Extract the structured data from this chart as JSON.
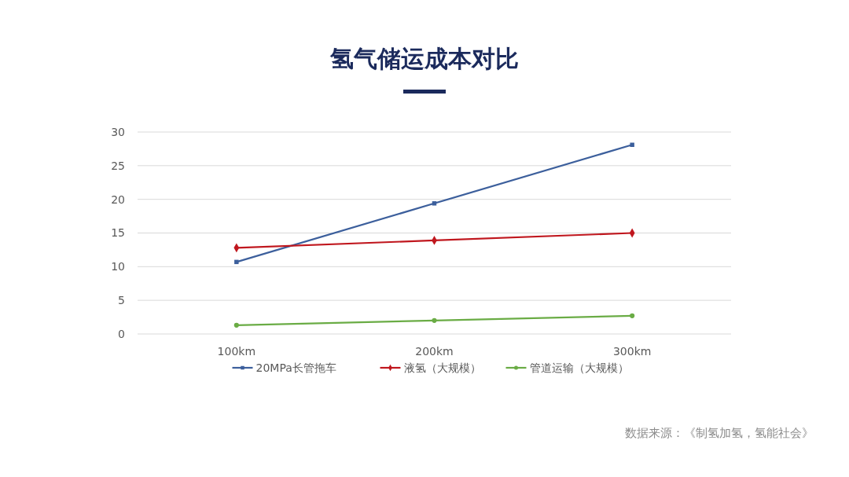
{
  "chart_data": {
    "type": "line",
    "title": "氢气储运成本对比",
    "categories": [
      "100km",
      "200km",
      "300km"
    ],
    "series": [
      {
        "name": "20MPa长管拖车",
        "color": "#3c5f9c",
        "marker": "square",
        "values": [
          10.7,
          19.4,
          28.1
        ]
      },
      {
        "name": "液氢（大规模）",
        "color": "#c0171e",
        "marker": "diamond",
        "values": [
          12.8,
          13.9,
          15.0
        ]
      },
      {
        "name": "管道运输（大规模）",
        "color": "#6aac45",
        "marker": "circle",
        "values": [
          1.3,
          2.0,
          2.7
        ]
      }
    ],
    "ylim": [
      0,
      30
    ],
    "yticks": [
      0,
      5,
      10,
      15,
      20,
      25,
      30
    ],
    "grid": "y",
    "legend": "bottom",
    "line_style": "solid",
    "annotations": [
      "数据来源：《制氢加氢，氢能社会》"
    ]
  }
}
